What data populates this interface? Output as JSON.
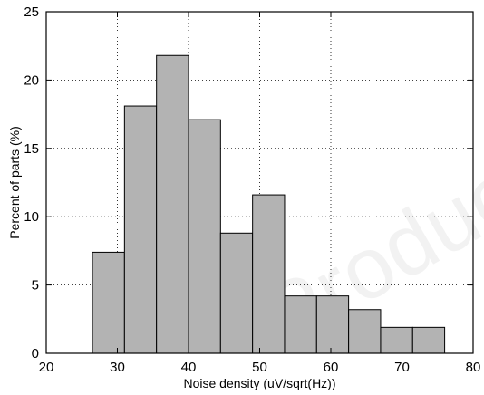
{
  "chart_data": {
    "type": "histogram",
    "title": "",
    "xlabel": "Noise density (uV/sqrt(Hz))",
    "ylabel": "Percent of parts (%)",
    "xlim": [
      20,
      80
    ],
    "ylim": [
      0,
      25
    ],
    "xticks": [
      "20",
      "30",
      "40",
      "50",
      "60",
      "70",
      "80"
    ],
    "yticks": [
      "0",
      "5",
      "10",
      "15",
      "20",
      "25"
    ],
    "grid": true,
    "bin_width": 4.5,
    "bins": [
      {
        "start": 26.5,
        "end": 31.0,
        "value": 7.4
      },
      {
        "start": 31.0,
        "end": 35.5,
        "value": 18.1
      },
      {
        "start": 35.5,
        "end": 40.0,
        "value": 21.8
      },
      {
        "start": 40.0,
        "end": 44.5,
        "value": 17.1
      },
      {
        "start": 44.5,
        "end": 49.0,
        "value": 8.8
      },
      {
        "start": 49.0,
        "end": 53.5,
        "value": 11.6
      },
      {
        "start": 53.5,
        "end": 58.0,
        "value": 4.2
      },
      {
        "start": 58.0,
        "end": 62.5,
        "value": 4.2
      },
      {
        "start": 62.5,
        "end": 67.0,
        "value": 3.2
      },
      {
        "start": 67.0,
        "end": 71.5,
        "value": 1.9
      },
      {
        "start": 71.5,
        "end": 76.0,
        "value": 1.9
      }
    ],
    "bar_color": "#b3b3b3",
    "edge_color": "#000000",
    "grid_color": "#000000"
  },
  "watermark": {
    "text": "Product"
  }
}
